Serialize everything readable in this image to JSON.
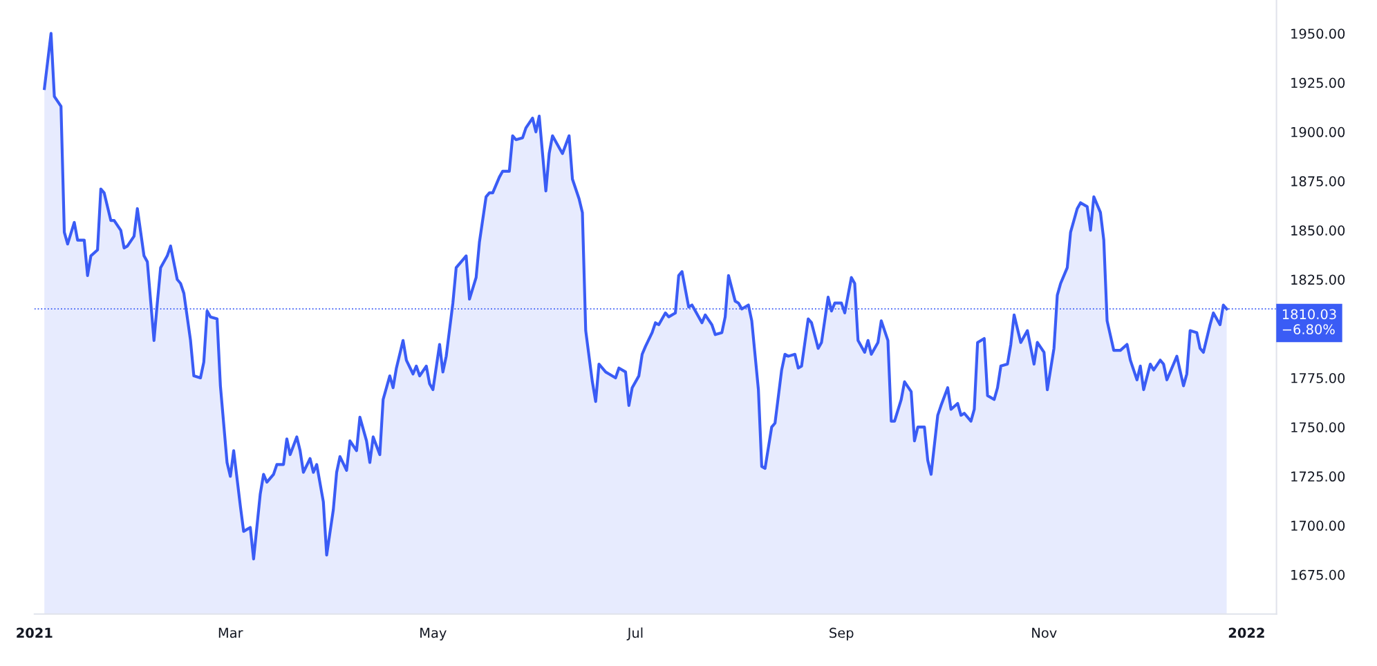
{
  "chart_data": {
    "type": "area",
    "x": [
      "2021-01-04",
      "2021-01-06",
      "2021-01-07",
      "2021-01-09",
      "2021-01-10",
      "2021-01-11",
      "2021-01-13",
      "2021-01-14",
      "2021-01-16",
      "2021-01-17",
      "2021-01-18",
      "2021-01-20",
      "2021-01-21",
      "2021-01-22",
      "2021-01-24",
      "2021-01-25",
      "2021-01-27",
      "2021-01-28",
      "2021-01-29",
      "2021-01-31",
      "2021-02-01",
      "2021-02-03",
      "2021-02-04",
      "2021-02-06",
      "2021-02-07",
      "2021-02-08",
      "2021-02-10",
      "2021-02-11",
      "2021-02-13",
      "2021-02-14",
      "2021-02-15",
      "2021-02-17",
      "2021-02-18",
      "2021-02-20",
      "2021-02-21",
      "2021-02-22",
      "2021-02-23",
      "2021-02-25",
      "2021-02-26",
      "2021-02-28",
      "2021-03-01",
      "2021-03-02",
      "2021-03-04",
      "2021-03-05",
      "2021-03-07",
      "2021-03-08",
      "2021-03-10",
      "2021-03-11",
      "2021-03-12",
      "2021-03-14",
      "2021-03-15",
      "2021-03-17",
      "2021-03-18",
      "2021-03-19",
      "2021-03-21",
      "2021-03-22",
      "2021-03-23",
      "2021-03-25",
      "2021-03-26",
      "2021-03-27",
      "2021-03-29",
      "2021-03-30",
      "2021-04-01",
      "2021-04-02",
      "2021-04-03",
      "2021-04-05",
      "2021-04-06",
      "2021-04-08",
      "2021-04-09",
      "2021-04-11",
      "2021-04-12",
      "2021-04-13",
      "2021-04-15",
      "2021-04-16",
      "2021-04-18",
      "2021-04-19",
      "2021-04-20",
      "2021-04-22",
      "2021-04-23",
      "2021-04-25",
      "2021-04-26",
      "2021-04-27",
      "2021-04-29",
      "2021-04-30",
      "2021-05-01",
      "2021-05-03",
      "2021-05-04",
      "2021-05-05",
      "2021-05-07",
      "2021-05-08",
      "2021-05-10",
      "2021-05-11",
      "2021-05-12",
      "2021-05-14",
      "2021-05-15",
      "2021-05-17",
      "2021-05-18",
      "2021-05-19",
      "2021-05-21",
      "2021-05-22",
      "2021-05-24",
      "2021-05-25",
      "2021-05-26",
      "2021-05-28",
      "2021-05-29",
      "2021-05-31",
      "2021-06-01",
      "2021-06-02",
      "2021-06-04",
      "2021-06-05",
      "2021-06-06",
      "2021-06-08",
      "2021-06-09",
      "2021-06-11",
      "2021-06-12",
      "2021-06-14",
      "2021-06-15",
      "2021-06-16",
      "2021-06-18",
      "2021-06-19",
      "2021-06-20",
      "2021-06-22",
      "2021-06-23",
      "2021-06-25",
      "2021-06-26",
      "2021-06-28",
      "2021-06-29",
      "2021-06-30",
      "2021-07-02",
      "2021-07-03",
      "2021-07-04",
      "2021-07-06",
      "2021-07-07",
      "2021-07-08",
      "2021-07-10",
      "2021-07-11",
      "2021-07-13",
      "2021-07-14",
      "2021-07-15",
      "2021-07-17",
      "2021-07-18",
      "2021-07-19",
      "2021-07-21",
      "2021-07-22",
      "2021-07-24",
      "2021-07-25",
      "2021-07-27",
      "2021-07-28",
      "2021-07-29",
      "2021-07-31",
      "2021-08-01",
      "2021-08-02",
      "2021-08-04",
      "2021-08-05",
      "2021-08-07",
      "2021-08-08",
      "2021-08-09",
      "2021-08-11",
      "2021-08-12",
      "2021-08-14",
      "2021-08-15",
      "2021-08-16",
      "2021-08-18",
      "2021-08-19",
      "2021-08-20",
      "2021-08-22",
      "2021-08-23",
      "2021-08-25",
      "2021-08-26",
      "2021-08-28",
      "2021-08-29",
      "2021-08-30",
      "2021-09-01",
      "2021-09-02",
      "2021-09-04",
      "2021-09-05",
      "2021-09-06",
      "2021-09-08",
      "2021-09-09",
      "2021-09-10",
      "2021-09-12",
      "2021-09-13",
      "2021-09-15",
      "2021-09-16",
      "2021-09-17",
      "2021-09-19",
      "2021-09-20",
      "2021-09-22",
      "2021-09-23",
      "2021-09-24",
      "2021-09-26",
      "2021-09-27",
      "2021-09-28",
      "2021-09-30",
      "2021-10-01",
      "2021-10-03",
      "2021-10-04",
      "2021-10-06",
      "2021-10-07",
      "2021-10-08",
      "2021-10-10",
      "2021-10-11",
      "2021-10-12",
      "2021-10-14",
      "2021-10-15",
      "2021-10-17",
      "2021-10-18",
      "2021-10-19",
      "2021-10-21",
      "2021-10-22",
      "2021-10-23",
      "2021-10-25",
      "2021-10-27",
      "2021-10-29",
      "2021-10-30",
      "2021-11-01",
      "2021-11-02",
      "2021-11-04",
      "2021-11-05",
      "2021-11-06",
      "2021-11-08",
      "2021-11-09",
      "2021-11-11",
      "2021-11-12",
      "2021-11-14",
      "2021-11-15",
      "2021-11-16",
      "2021-11-18",
      "2021-11-19",
      "2021-11-20",
      "2021-11-22",
      "2021-11-23",
      "2021-11-24",
      "2021-11-26",
      "2021-11-27",
      "2021-11-29",
      "2021-11-30",
      "2021-12-01",
      "2021-12-03",
      "2021-12-04",
      "2021-12-06",
      "2021-12-07",
      "2021-12-08",
      "2021-12-10",
      "2021-12-11",
      "2021-12-13",
      "2021-12-14",
      "2021-12-15",
      "2021-12-17",
      "2021-12-18",
      "2021-12-19",
      "2021-12-21",
      "2021-12-22",
      "2021-12-24",
      "2021-12-25",
      "2021-12-26"
    ],
    "series": [
      {
        "color": "#3a5cf5",
        "values": [
          1922,
          1950,
          1918,
          1913,
          1849,
          1843,
          1854,
          1845,
          1845,
          1827,
          1837,
          1840,
          1871,
          1869,
          1855,
          1855,
          1850,
          1841,
          1842,
          1847,
          1861,
          1837,
          1834,
          1794,
          1813,
          1831,
          1837,
          1842,
          1825,
          1823,
          1818,
          1794,
          1776,
          1775,
          1783,
          1809,
          1806,
          1805,
          1771,
          1732,
          1725,
          1738,
          1710,
          1697,
          1699,
          1683,
          1716,
          1726,
          1722,
          1726,
          1731,
          1731,
          1744,
          1736,
          1745,
          1738,
          1727,
          1734,
          1727,
          1731,
          1712,
          1685,
          1708,
          1727,
          1735,
          1728,
          1743,
          1738,
          1755,
          1743,
          1732,
          1745,
          1736,
          1764,
          1776,
          1770,
          1780,
          1794,
          1784,
          1777,
          1781,
          1776,
          1781,
          1772,
          1769,
          1792,
          1778,
          1786,
          1813,
          1831,
          1835,
          1837,
          1815,
          1826,
          1844,
          1867,
          1869,
          1869,
          1877,
          1880,
          1880,
          1898,
          1896,
          1897,
          1902,
          1907,
          1900,
          1908,
          1870,
          1889,
          1898,
          1892,
          1889,
          1898,
          1876,
          1866,
          1859,
          1799,
          1773,
          1763,
          1782,
          1778,
          1777,
          1775,
          1780,
          1778,
          1761,
          1770,
          1776,
          1787,
          1791,
          1798,
          1803,
          1802,
          1808,
          1806,
          1808,
          1827,
          1829,
          1811,
          1812,
          1809,
          1803,
          1807,
          1802,
          1797,
          1798,
          1806,
          1827,
          1814,
          1813,
          1810,
          1812,
          1804,
          1769,
          1730,
          1729,
          1750,
          1752,
          1779,
          1787,
          1786,
          1787,
          1780,
          1781,
          1805,
          1803,
          1790,
          1793,
          1816,
          1809,
          1813,
          1813,
          1808,
          1826,
          1823,
          1794,
          1788,
          1794,
          1787,
          1793,
          1804,
          1794,
          1753,
          1753,
          1764,
          1773,
          1768,
          1743,
          1750,
          1750,
          1733,
          1726,
          1756,
          1761,
          1770,
          1759,
          1762,
          1756,
          1757,
          1753,
          1759,
          1793,
          1795,
          1766,
          1764,
          1770,
          1781,
          1782,
          1792,
          1807,
          1793,
          1799,
          1782,
          1793,
          1788,
          1769,
          1790,
          1817,
          1823,
          1831,
          1849,
          1861,
          1864,
          1862,
          1850,
          1867,
          1859,
          1845,
          1804,
          1789,
          1789,
          1789,
          1792,
          1784,
          1774,
          1781,
          1769,
          1782,
          1779,
          1784,
          1782,
          1774,
          1782,
          1786,
          1771,
          1777,
          1799,
          1798,
          1790,
          1788,
          1802,
          1808,
          1802,
          1812,
          1810.03
        ]
      }
    ],
    "xlim": [
      "2021-01-01",
      "2022-01-10"
    ],
    "xticks": [
      {
        "value": "2021-01-01",
        "label": "2021"
      },
      {
        "value": "2021-03-01",
        "label": "Mar"
      },
      {
        "value": "2021-05-01",
        "label": "May"
      },
      {
        "value": "2021-07-01",
        "label": "Jul"
      },
      {
        "value": "2021-09-01",
        "label": "Sep"
      },
      {
        "value": "2021-11-01",
        "label": "Nov"
      },
      {
        "value": "2022-01-01",
        "label": "2022"
      }
    ],
    "ylim": [
      1655,
      1967
    ],
    "yticks": [
      {
        "value": 1675,
        "label": "1675.00"
      },
      {
        "value": 1700,
        "label": "1700.00"
      },
      {
        "value": 1725,
        "label": "1725.00"
      },
      {
        "value": 1750,
        "label": "1750.00"
      },
      {
        "value": 1775,
        "label": "1775.00"
      },
      {
        "value": 1825,
        "label": "1825.00"
      },
      {
        "value": 1850,
        "label": "1850.00"
      },
      {
        "value": 1875,
        "label": "1875.00"
      },
      {
        "value": 1900,
        "label": "1900.00"
      },
      {
        "value": 1925,
        "label": "1925.00"
      },
      {
        "value": 1950,
        "label": "1950.00"
      }
    ],
    "ref_lines": [
      {
        "axis": "y",
        "value": 1810.03,
        "label": "1810.03",
        "color": "#3a5cf5",
        "line_style": "dotted"
      }
    ],
    "annotations": [
      "−6.80%"
    ],
    "grid": false,
    "legend": false
  }
}
